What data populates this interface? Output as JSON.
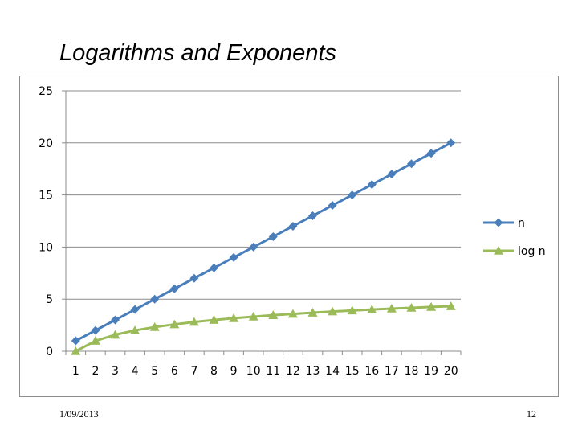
{
  "slide": {
    "title": "Logarithms and Exponents",
    "date": "1/09/2013",
    "page_number": "12"
  },
  "chart_data": {
    "type": "line",
    "title": "",
    "xlabel": "",
    "ylabel": "",
    "categories": [
      "1",
      "2",
      "3",
      "4",
      "5",
      "6",
      "7",
      "8",
      "9",
      "10",
      "11",
      "12",
      "13",
      "14",
      "15",
      "16",
      "17",
      "18",
      "19",
      "20"
    ],
    "y_ticks": [
      "0",
      "5",
      "10",
      "15",
      "20",
      "25"
    ],
    "ylim": [
      0,
      25
    ],
    "grid": true,
    "legend_position": "right",
    "series": [
      {
        "name": "n",
        "color": "#4a7ebb",
        "marker": "diamond",
        "values": [
          1,
          2,
          3,
          4,
          5,
          6,
          7,
          8,
          9,
          10,
          11,
          12,
          13,
          14,
          15,
          16,
          17,
          18,
          19,
          20
        ]
      },
      {
        "name": "log n",
        "color": "#9bbb59",
        "marker": "triangle",
        "values": [
          0,
          1,
          1.58,
          2,
          2.32,
          2.58,
          2.81,
          3,
          3.17,
          3.32,
          3.46,
          3.58,
          3.7,
          3.81,
          3.91,
          4,
          4.09,
          4.17,
          4.25,
          4.32
        ]
      }
    ]
  }
}
